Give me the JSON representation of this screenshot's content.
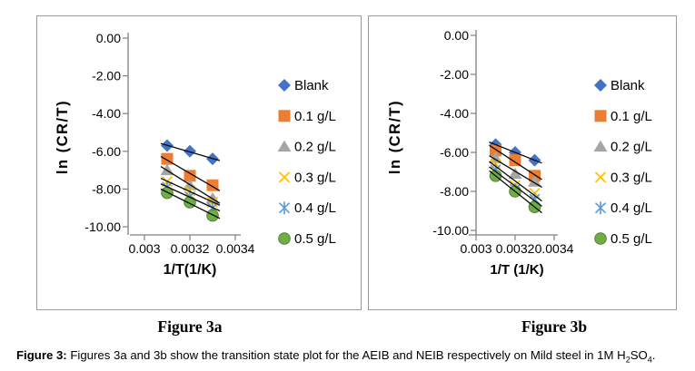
{
  "chart_data": [
    {
      "type": "scatter",
      "figure_label": "Figure 3a",
      "xlabel": "1/T(1/K)",
      "ylabel": "ln (CR/T)",
      "xlim": [
        0.003,
        0.0034
      ],
      "ylim": [
        -10,
        0
      ],
      "x_ticks": [
        0.003,
        0.0032,
        0.0034
      ],
      "x_tick_labels": [
        "0.003",
        "0.0032",
        "0.0034"
      ],
      "y_ticks": [
        0,
        -2,
        -4,
        -6,
        -8,
        -10
      ],
      "y_tick_labels": [
        "0.00",
        "-2.00",
        "-4.00",
        "-6.00",
        "-8.00",
        "-10.00"
      ],
      "x": [
        0.0031,
        0.0032,
        0.0033
      ],
      "grid": false,
      "legend_position": "right",
      "trendlines": true,
      "trendline_color": "#0a0a0a",
      "axis_color": "#808080",
      "series": [
        {
          "name": "Blank",
          "marker": "diamond",
          "color": "#4472C4",
          "values": [
            -5.7,
            -6.0,
            -6.4
          ]
        },
        {
          "name": "0.1 g/L",
          "marker": "square",
          "color": "#ED7D31",
          "values": [
            -6.4,
            -7.3,
            -7.8
          ]
        },
        {
          "name": "0.2 g/L",
          "marker": "triangle",
          "color": "#A5A5A5",
          "values": [
            -7.0,
            -7.8,
            -8.5
          ]
        },
        {
          "name": "0.3 g/L",
          "marker": "x",
          "color": "#FFC000",
          "values": [
            -7.6,
            -8.1,
            -8.7
          ]
        },
        {
          "name": "0.4 g/L",
          "marker": "x-line",
          "color": "#5B9BD5",
          "values": [
            -7.9,
            -8.4,
            -9.0
          ]
        },
        {
          "name": "0.5 g/L",
          "marker": "circle",
          "color": "#70AD47",
          "values": [
            -8.2,
            -8.7,
            -9.4
          ]
        }
      ]
    },
    {
      "type": "scatter",
      "figure_label": "Figure 3b",
      "xlabel": "1/T (1/K)",
      "ylabel": "ln (CR/T)",
      "xlim": [
        0.003,
        0.0034
      ],
      "ylim": [
        -10,
        0
      ],
      "x_ticks": [
        0.003,
        0.0032,
        0.0034
      ],
      "x_tick_labels": [
        "0.003",
        "0.0032",
        "0.0034"
      ],
      "y_ticks": [
        0,
        -2,
        -4,
        -6,
        -8,
        -10
      ],
      "y_tick_labels": [
        "0.00",
        "-2.00",
        "-4.00",
        "-6.00",
        "-8.00",
        "-10.00"
      ],
      "x": [
        0.0031,
        0.0032,
        0.0033
      ],
      "grid": false,
      "legend_position": "right",
      "trendlines": true,
      "trendline_color": "#0a0a0a",
      "axis_color": "#808080",
      "series": [
        {
          "name": "Blank",
          "marker": "diamond",
          "color": "#4472C4",
          "values": [
            -5.6,
            -6.0,
            -6.4
          ]
        },
        {
          "name": "0.1 g/L",
          "marker": "square",
          "color": "#ED7D31",
          "values": [
            -5.9,
            -6.4,
            -7.2
          ]
        },
        {
          "name": "0.2 g/L",
          "marker": "triangle",
          "color": "#A5A5A5",
          "values": [
            -6.3,
            -7.1,
            -7.5
          ]
        },
        {
          "name": "0.3 g/L",
          "marker": "x",
          "color": "#FFC000",
          "values": [
            -6.6,
            -7.7,
            -8.1
          ]
        },
        {
          "name": "0.4 g/L",
          "marker": "x-line",
          "color": "#5B9BD5",
          "values": [
            -6.9,
            -7.9,
            -8.4
          ]
        },
        {
          "name": "0.5 g/L",
          "marker": "circle",
          "color": "#70AD47",
          "values": [
            -7.2,
            -8.0,
            -8.8
          ]
        }
      ]
    }
  ],
  "caption": {
    "label": "Figure 3:",
    "text": " Figures 3a and 3b show the transition state plot for the AEIB and NEIB respectively on Mild steel in 1M H",
    "sub1": "2",
    "mid": "SO",
    "sub2": "4",
    "end": "."
  }
}
